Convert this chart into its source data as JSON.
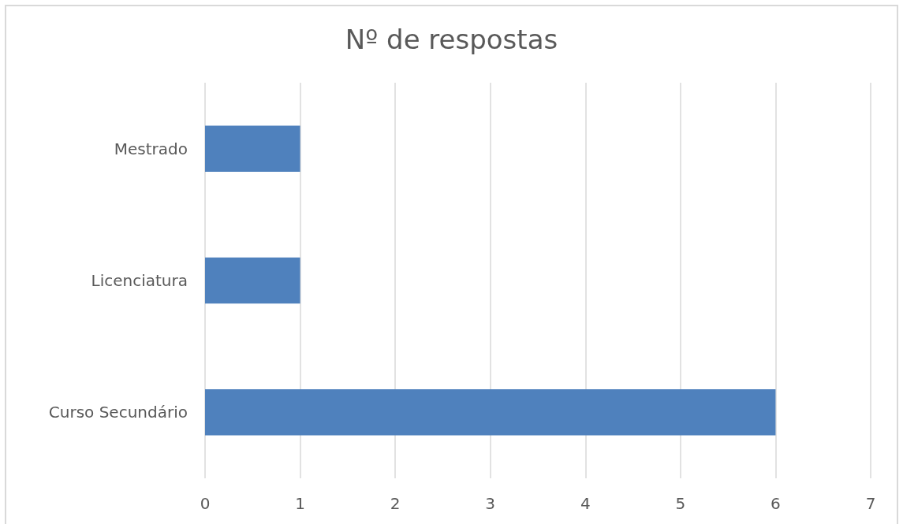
{
  "chart_data": {
    "type": "bar",
    "title": "Nº de respostas",
    "categories": [
      "Mestrado",
      "Licenciatura",
      "Curso Secundário"
    ],
    "values": [
      1,
      1,
      6
    ],
    "color": "#4f81bd",
    "orientation": "horizontal",
    "xlim": [
      0,
      7
    ],
    "xticks": [
      0,
      1,
      2,
      3,
      4,
      5,
      6,
      7
    ],
    "grid": "x"
  }
}
